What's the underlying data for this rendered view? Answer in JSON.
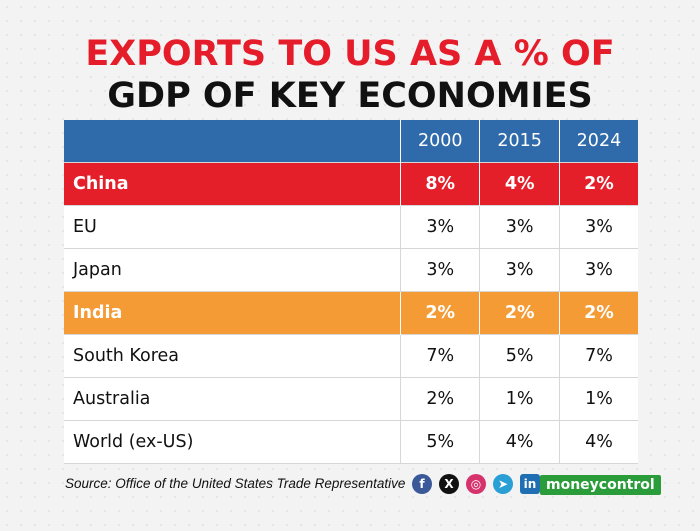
{
  "title_line1": "EXPORTS TO US AS A % OF",
  "title_line2": "GDP OF KEY ECONOMIES",
  "source": "Source: Office of the United States Trade Representative",
  "brand": "moneycontrol",
  "colors": {
    "title_red": "#e51c2a",
    "header_blue": "#2f6aaa",
    "china_row_red": "#e41f2a",
    "india_row_orange": "#f59b35",
    "brand_green": "#2a9d3a"
  },
  "social_icons": [
    {
      "name": "facebook-icon",
      "glyph": "f",
      "color": "#3b5998"
    },
    {
      "name": "x-icon",
      "glyph": "X",
      "color": "#111111"
    },
    {
      "name": "instagram-icon",
      "glyph": "◎",
      "color": "#d6336c"
    },
    {
      "name": "telegram-icon",
      "glyph": "➤",
      "color": "#2a9fd6"
    },
    {
      "name": "linkedin-icon",
      "glyph": "in",
      "color": "#1f6fb2"
    }
  ],
  "chart_data": {
    "type": "table",
    "title": "EXPORTS TO US AS A % OF GDP OF KEY ECONOMIES",
    "columns": [
      "",
      "2000",
      "2015",
      "2024"
    ],
    "rows": [
      {
        "label": "China",
        "values": [
          "8%",
          "4%",
          "2%"
        ],
        "highlight": "red"
      },
      {
        "label": "EU",
        "values": [
          "3%",
          "3%",
          "3%"
        ]
      },
      {
        "label": "Japan",
        "values": [
          "3%",
          "3%",
          "3%"
        ]
      },
      {
        "label": "India",
        "values": [
          "2%",
          "2%",
          "2%"
        ],
        "highlight": "orange"
      },
      {
        "label": "South Korea",
        "values": [
          "7%",
          "5%",
          "7%"
        ]
      },
      {
        "label": "Australia",
        "values": [
          "2%",
          "1%",
          "1%"
        ]
      },
      {
        "label": "World (ex-US)",
        "values": [
          "5%",
          "4%",
          "4%"
        ]
      }
    ]
  }
}
